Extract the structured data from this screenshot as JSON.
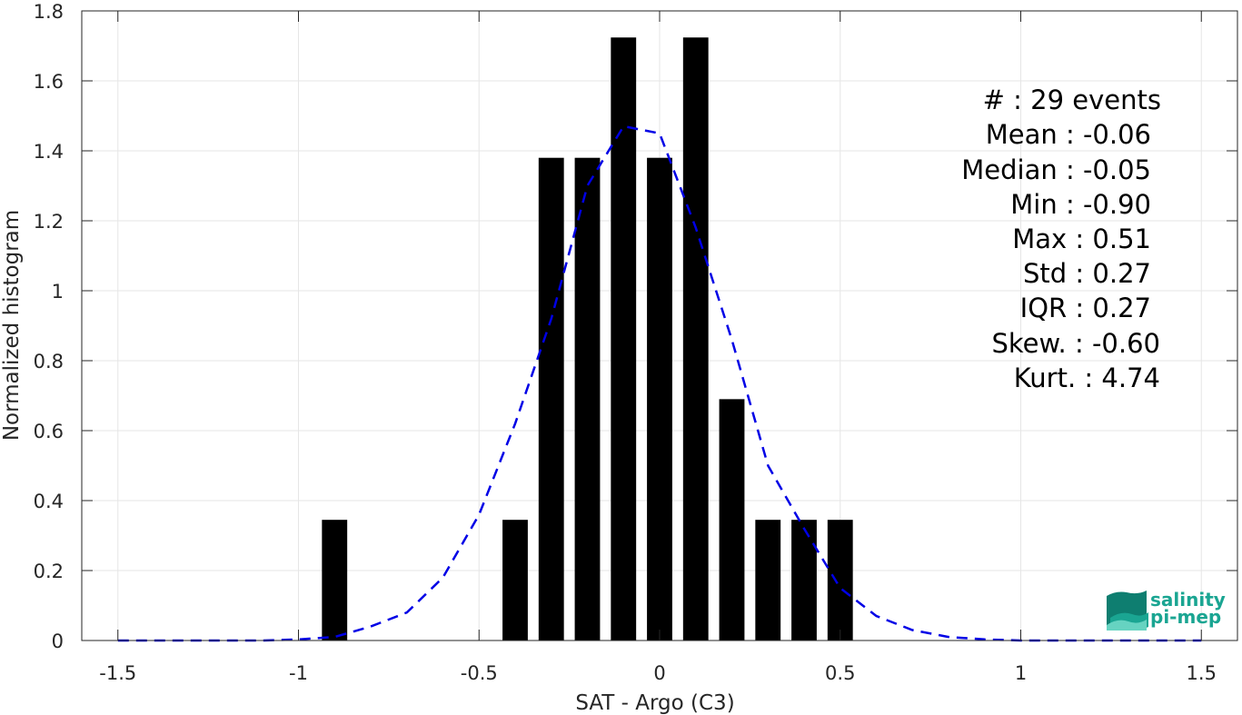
{
  "chart_data": {
    "type": "bar",
    "xlabel": "SAT - Argo (C3)",
    "ylabel": "Normalized histogram",
    "xlim": [
      -1.6,
      1.6
    ],
    "ylim": [
      0,
      1.8
    ],
    "x_ticks": [
      -1.5,
      -1,
      -0.5,
      0,
      0.5,
      1,
      1.5
    ],
    "x_tick_labels": [
      "-1.5",
      "-1",
      "-0.5",
      "0",
      "0.5",
      "1",
      "1.5"
    ],
    "y_ticks": [
      0,
      0.2,
      0.4,
      0.6,
      0.8,
      1,
      1.2,
      1.4,
      1.6,
      1.8
    ],
    "y_tick_labels": [
      "0",
      "0.2",
      "0.4",
      "0.6",
      "0.8",
      "1",
      "1.2",
      "1.4",
      "1.6",
      "1.8"
    ],
    "grid": true,
    "bar_width": 0.07,
    "bars": [
      {
        "x": -0.9,
        "value": 0.345
      },
      {
        "x": -0.4,
        "value": 0.345
      },
      {
        "x": -0.3,
        "value": 1.38
      },
      {
        "x": -0.2,
        "value": 1.38
      },
      {
        "x": -0.1,
        "value": 1.724
      },
      {
        "x": 0.0,
        "value": 1.38
      },
      {
        "x": 0.1,
        "value": 1.724
      },
      {
        "x": 0.2,
        "value": 0.69
      },
      {
        "x": 0.3,
        "value": 0.345
      },
      {
        "x": 0.4,
        "value": 0.345
      },
      {
        "x": 0.5,
        "value": 0.345
      }
    ],
    "bar_color": "#000000",
    "fit_curve": {
      "style": "dashed",
      "color": "#0000e6",
      "x": [
        -1.5,
        -1.4,
        -1.3,
        -1.2,
        -1.1,
        -1.0,
        -0.9,
        -0.8,
        -0.7,
        -0.6,
        -0.5,
        -0.4,
        -0.3,
        -0.2,
        -0.1,
        0.0,
        0.1,
        0.2,
        0.3,
        0.4,
        0.5,
        0.6,
        0.7,
        0.8,
        0.9,
        1.0,
        1.1,
        1.2,
        1.3,
        1.4,
        1.5
      ],
      "y": [
        0.0,
        0.0,
        0.0,
        0.0,
        0.0,
        0.003,
        0.01,
        0.04,
        0.08,
        0.18,
        0.36,
        0.62,
        0.92,
        1.3,
        1.47,
        1.45,
        1.18,
        0.86,
        0.5,
        0.32,
        0.15,
        0.07,
        0.03,
        0.01,
        0.003,
        0.0,
        0.0,
        0.0,
        0.0,
        0.0,
        0.0
      ]
    }
  },
  "stats": [
    {
      "label": "#  ",
      "value": "29 events"
    },
    {
      "label": "Mean",
      "value": "-0.06"
    },
    {
      "label": "Median",
      "value": "-0.05"
    },
    {
      "label": "Min",
      "value": "-0.90"
    },
    {
      "label": "Max",
      "value": "0.51"
    },
    {
      "label": "Std",
      "value": "0.27"
    },
    {
      "label": "IQR",
      "value": "0.27"
    },
    {
      "label": "Skew.",
      "value": "-0.60"
    },
    {
      "label": "Kurt.",
      "value": "4.74"
    }
  ],
  "logo": {
    "line1": "salinity",
    "line2": "pi-mep",
    "colors": [
      "#1aa592",
      "#66d3c1",
      "#0e7e70"
    ]
  }
}
